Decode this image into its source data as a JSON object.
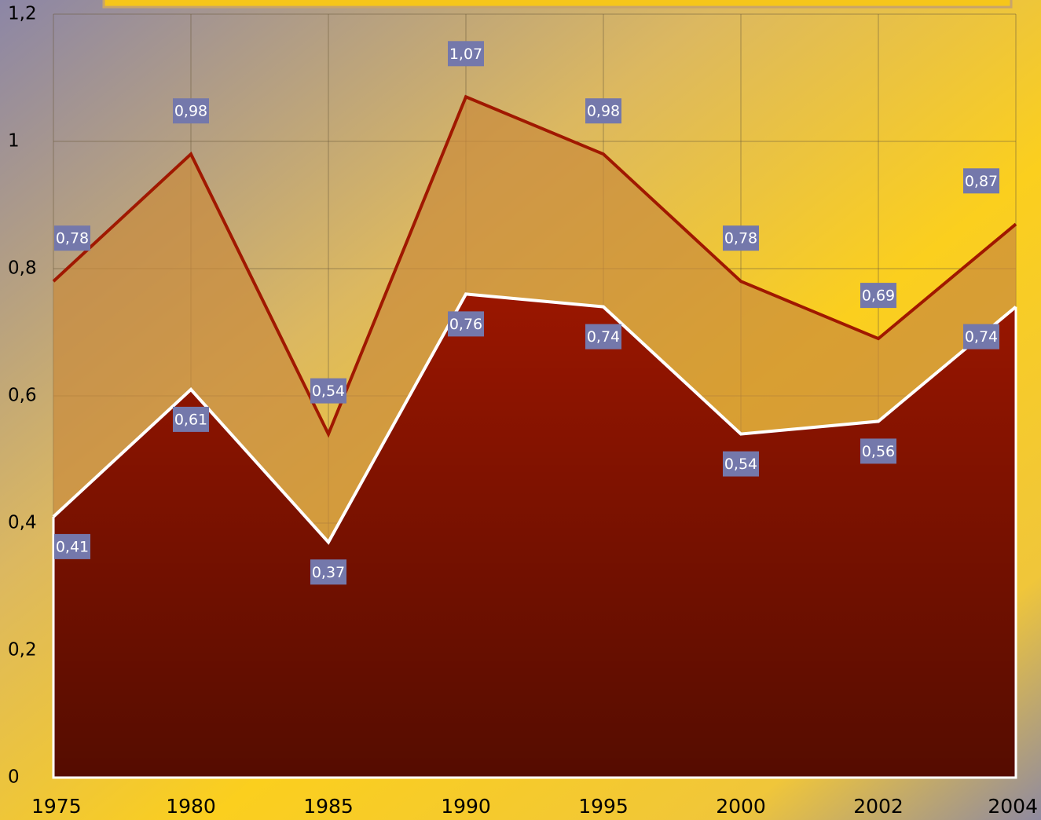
{
  "chart_data": {
    "type": "area",
    "categories": [
      "1975",
      "1980",
      "1985",
      "1990",
      "1995",
      "2000",
      "2002",
      "2004"
    ],
    "series": [
      {
        "color": "#a01800",
        "fill": "#c98a3c",
        "values": [
          0.78,
          0.98,
          0.54,
          1.07,
          0.98,
          0.78,
          0.69,
          0.87
        ],
        "value_labels": [
          "0,78",
          "0,98",
          "0,54",
          "1,07",
          "0,98",
          "0,78",
          "0,69",
          "0,87"
        ]
      },
      {
        "color": "#ffffff",
        "fill": "#9a1600",
        "values": [
          0.41,
          0.61,
          0.37,
          0.76,
          0.74,
          0.54,
          0.56,
          0.74
        ],
        "value_labels": [
          "0,41",
          "0,61",
          "0,37",
          "0,76",
          "0,74",
          "0,54",
          "0,56",
          "0,74"
        ]
      }
    ],
    "ylim": [
      0,
      1.2
    ],
    "yticks": [
      0,
      {
        "value": 0.2,
        "label": "0,2"
      },
      {
        "value": 0.4,
        "label": "0,4"
      },
      {
        "value": 0.6,
        "label": "0,6"
      },
      {
        "value": 0.8,
        "label": "0,8"
      },
      1,
      {
        "value": 1.2,
        "label": "1,2"
      }
    ],
    "grid": true
  }
}
